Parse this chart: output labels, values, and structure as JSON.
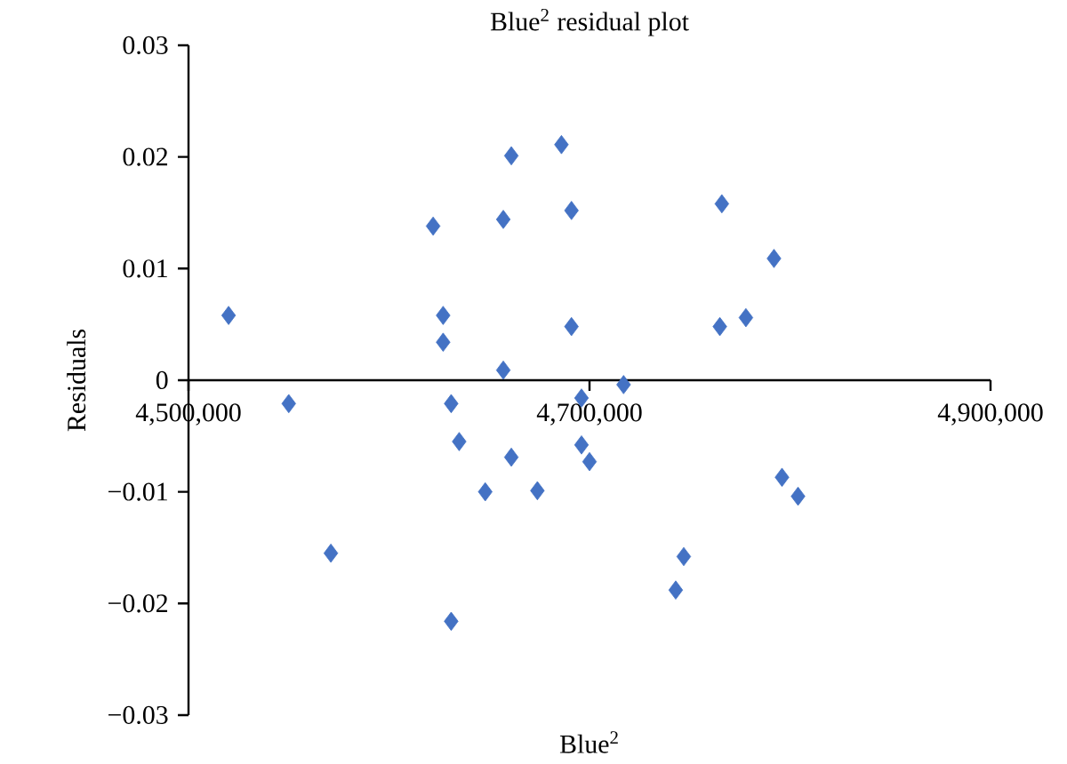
{
  "chart_data": {
    "type": "scatter",
    "title": "Blue$^{2}$ residual plot",
    "xlabel": "Blue$^{2}$",
    "ylabel": "Residuals",
    "xlim": [
      4500000,
      4900000
    ],
    "xticks": [
      {
        "value": 4500000,
        "label": "4,500,000"
      },
      {
        "value": 4700000,
        "label": "4,700,000"
      },
      {
        "value": 4900000,
        "label": "4,900,000"
      }
    ],
    "ylim": [
      -0.03,
      0.03
    ],
    "yticks": [
      {
        "value": -0.03,
        "label": "−0.03"
      },
      {
        "value": -0.02,
        "label": "−0.02"
      },
      {
        "value": -0.01,
        "label": "−0.01"
      },
      0,
      0.01,
      0.02,
      0.03
    ],
    "marker": "diamond",
    "series": [
      {
        "color": "#4472c4",
        "x": [
          4520000,
          4622000,
          4627000,
          4627000,
          4661000,
          4657000,
          4657000,
          4686000,
          4691000,
          4691000,
          4766000,
          4792000,
          4765000,
          4778000,
          4550000,
          4631000,
          4635000,
          4661000,
          4648000,
          4674000,
          4696000,
          4717000,
          4696000,
          4700000,
          4571000,
          4631000,
          4747000,
          4743000,
          4796000,
          4804000
        ],
        "values": [
          0.0058,
          0.0138,
          0.0058,
          0.0034,
          0.0201,
          0.0144,
          0.0009,
          0.0211,
          0.0152,
          0.0048,
          0.0158,
          0.0109,
          0.0048,
          0.0056,
          -0.0021,
          -0.0021,
          -0.0055,
          -0.0069,
          -0.01,
          -0.0099,
          -0.0016,
          -0.0004,
          -0.0058,
          -0.0073,
          -0.0155,
          -0.0216,
          -0.0158,
          -0.0188,
          -0.0087,
          -0.0104
        ]
      }
    ]
  }
}
